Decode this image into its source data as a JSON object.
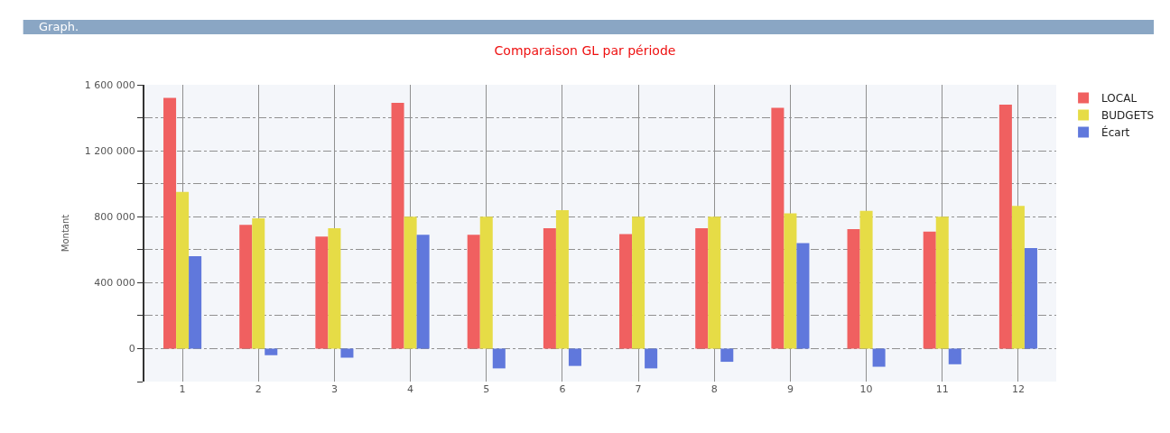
{
  "chart_data": {
    "type": "bar",
    "title": "Comparaison GL par période",
    "ylabel": "Montant",
    "annotations": [
      "Graph."
    ],
    "categories": [
      "1",
      "2",
      "3",
      "4",
      "5",
      "6",
      "7",
      "8",
      "9",
      "10",
      "11",
      "12"
    ],
    "series": [
      {
        "name": "LOCAL",
        "color": "#f06060",
        "values": [
          1520000,
          750000,
          680000,
          1490000,
          690000,
          730000,
          695000,
          730000,
          1460000,
          725000,
          710000,
          1480000
        ]
      },
      {
        "name": "BUDGETS",
        "color": "#e6dc46",
        "values": [
          950000,
          790000,
          730000,
          800000,
          800000,
          840000,
          800000,
          800000,
          820000,
          835000,
          800000,
          865000
        ]
      },
      {
        "name": "Écart",
        "color": "#6078dc",
        "values": [
          560000,
          -40000,
          -55000,
          690000,
          -120000,
          -105000,
          -120000,
          -80000,
          640000,
          -110000,
          -95000,
          610000
        ]
      }
    ],
    "ylim": [
      -200000,
      1600000
    ],
    "yticks": [
      {
        "value": -200000,
        "label": null
      },
      {
        "value": 0,
        "label": "0"
      },
      {
        "value": 200000,
        "label": null
      },
      {
        "value": 400000,
        "label": "400 000"
      },
      {
        "value": 600000,
        "label": null
      },
      {
        "value": 800000,
        "label": "800 000"
      },
      {
        "value": 1000000,
        "label": null
      },
      {
        "value": 1200000,
        "label": "1 200 000"
      },
      {
        "value": 1400000,
        "label": null
      },
      {
        "value": 1600000,
        "label": "1 600 000"
      }
    ],
    "grid": true,
    "legend": "top right"
  }
}
